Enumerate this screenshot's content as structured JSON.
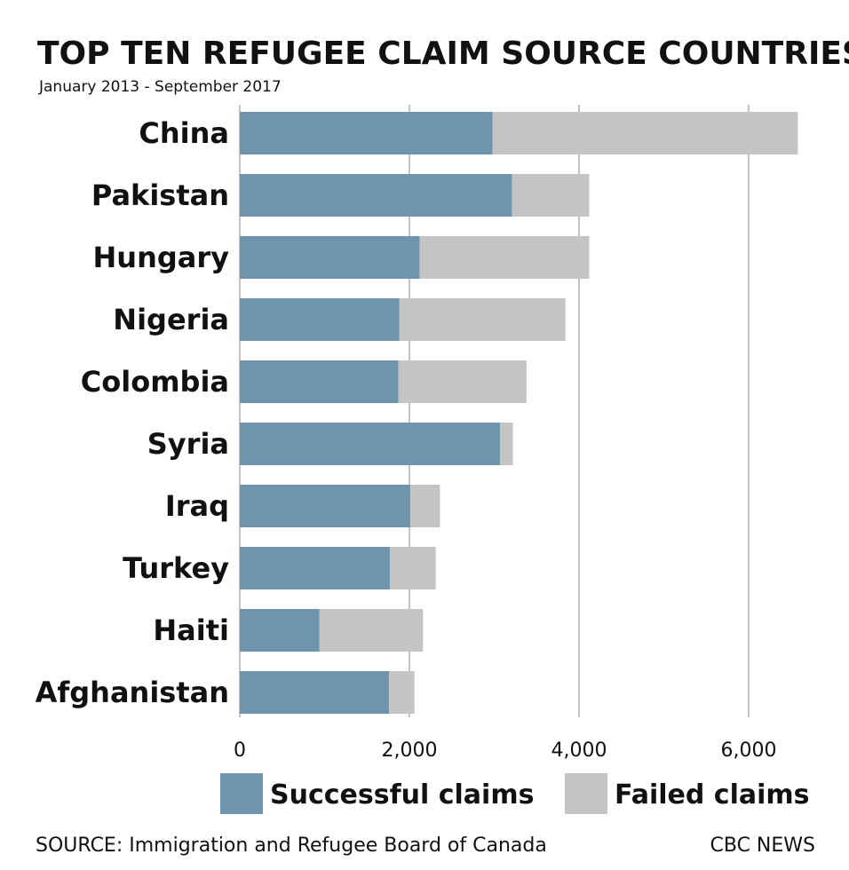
{
  "chart_data": {
    "type": "bar",
    "orientation": "horizontal",
    "stacked": true,
    "title": "TOP TEN REFUGEE CLAIM SOURCE COUNTRIES",
    "subtitle": "January 2013 - September 2017",
    "categories": [
      "China",
      "Pakistan",
      "Hungary",
      "Nigeria",
      "Colombia",
      "Syria",
      "Iraq",
      "Turkey",
      "Haiti",
      "Afghanistan"
    ],
    "series": [
      {
        "name": "Successful claims",
        "color": "#6f95ae",
        "values": [
          2980,
          3210,
          2120,
          1880,
          1870,
          3070,
          2010,
          1770,
          940,
          1760
        ]
      },
      {
        "name": "Failed claims",
        "color": "#c4c4c4",
        "values": [
          3600,
          910,
          2000,
          1960,
          1510,
          150,
          350,
          540,
          1220,
          300
        ]
      }
    ],
    "xlim": [
      0,
      7000
    ],
    "xticks": [
      0,
      2000,
      4000,
      6000
    ],
    "xtick_labels": [
      "0",
      "2,000",
      "4,000",
      "6,000"
    ],
    "grid": true,
    "legend_position": "bottom"
  },
  "footer": {
    "source": "SOURCE: Immigration and Refugee Board of Canada",
    "brand": "CBC NEWS"
  }
}
